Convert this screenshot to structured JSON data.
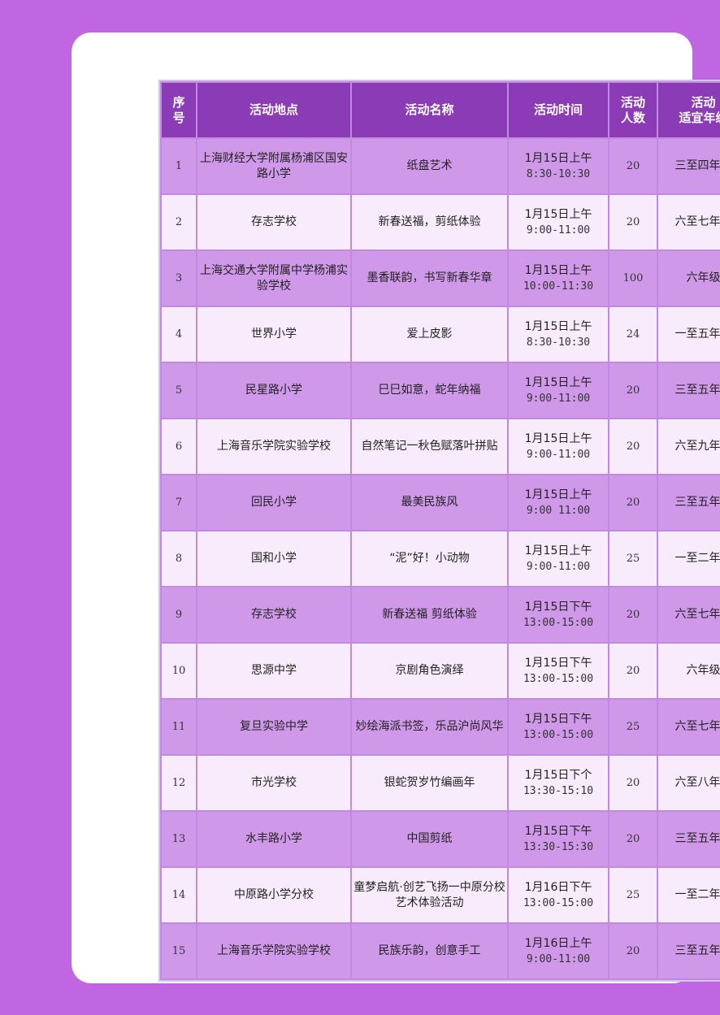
{
  "headers": {
    "index": [
      "序",
      "号"
    ],
    "location": "活动地点",
    "name": "活动名称",
    "time": "活动时间",
    "count": [
      "活动",
      "人数"
    ],
    "grade": [
      "活动",
      "适宜年级"
    ]
  },
  "colors": {
    "background": "#c066e2",
    "header": "#8a3bb5",
    "row_odd": "#cf98e8",
    "row_even": "#f8ecfc"
  },
  "rows": [
    {
      "index": "1",
      "location": "上海财经大学附属杨浦区国安路小学",
      "name": "纸盘艺术",
      "date": "1月15日上午",
      "time": "8:30-10:30",
      "count": "20",
      "grade": "三至四年级"
    },
    {
      "index": "2",
      "location": "存志学校",
      "name": "新春送福，剪纸体验",
      "date": "1月15日上午",
      "time": "9:00-11:00",
      "count": "20",
      "grade": "六至七年级"
    },
    {
      "index": "3",
      "location": "上海交通大学附属中学杨浦实验学校",
      "name": "墨香联韵，书写新春华章",
      "date": "1月15日上午",
      "time": "10:00-11:30",
      "count": "100",
      "grade": "六年级"
    },
    {
      "index": "4",
      "location": "世界小学",
      "name": "爱上皮影",
      "date": "1月15日上午",
      "time": "8:30-10:30",
      "count": "24",
      "grade": "一至五年级"
    },
    {
      "index": "5",
      "location": "民星路小学",
      "name": "巳巳如意，蛇年纳福",
      "date": "1月15日上午",
      "time": "9:00-11:00",
      "count": "20",
      "grade": "三至五年级"
    },
    {
      "index": "6",
      "location": "上海音乐学院实验学校",
      "name": "自然笔记一秋色赋落叶拼贴",
      "date": "1月15日上午",
      "time": "9:00-11:00",
      "count": "20",
      "grade": "六至九年级"
    },
    {
      "index": "7",
      "location": "回民小学",
      "name": "最美民族风",
      "date": "1月15日上午",
      "time": "9:00 11:00",
      "count": "20",
      "grade": "三至五年级"
    },
    {
      "index": "8",
      "location": "国和小学",
      "name": "“泥”好！小动物",
      "date": "1月15日上午",
      "time": "9:00-11:00",
      "count": "25",
      "grade": "一至二年级"
    },
    {
      "index": "9",
      "location": "存志学校",
      "name": "新春送福 剪纸体验",
      "date": "1月15日下午",
      "time": "13:00-15:00",
      "count": "20",
      "grade": "六至七年级"
    },
    {
      "index": "10",
      "location": "思源中学",
      "name": "京剧角色演绎",
      "date": "1月15日下午",
      "time": "13:00-15:00",
      "count": "20",
      "grade": "六年级"
    },
    {
      "index": "11",
      "location": "复旦实验中学",
      "name": "妙绘海派书签，乐品沪尚风华",
      "date": "1月15日下午",
      "time": "13:00-15:00",
      "count": "25",
      "grade": "六至七年级"
    },
    {
      "index": "12",
      "location": "市光学校",
      "name": "银蛇贺岁竹编画年",
      "date": "1月15日下个",
      "time": "13:30-15:10",
      "count": "20",
      "grade": "六至八年级"
    },
    {
      "index": "13",
      "location": "水丰路小学",
      "name": "中国剪纸",
      "date": "1月15日下午",
      "time": "13:30-15:30",
      "count": "20",
      "grade": "三至五年级"
    },
    {
      "index": "14",
      "location": "中原路小学分校",
      "name": "童梦启航·创艺飞扬一中原分校艺术体验活动",
      "date": "1月16日下午",
      "time": "13:00-15:00",
      "count": "25",
      "grade": "一至二年级"
    },
    {
      "index": "15",
      "location": "上海音乐学院实验学校",
      "name": "民族乐韵，创意手工",
      "date": "1月16日上午",
      "time": "9:00-11:00",
      "count": "20",
      "grade": "三至五年级"
    }
  ]
}
